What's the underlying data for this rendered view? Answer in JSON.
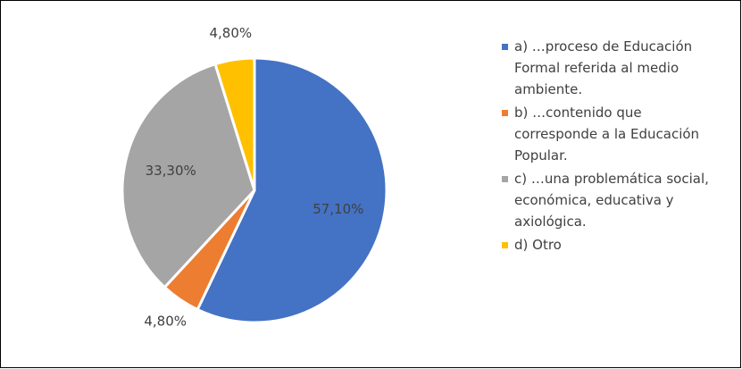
{
  "chart_data": {
    "type": "pie",
    "categories": [
      "a) …proceso de Educación Formal referida al medio ambiente.",
      "b) …contenido que corresponde a la Educación Popular.",
      "c) …una problemática social, económica, educativa y axiológica.",
      "d) Otro"
    ],
    "values": [
      57.1,
      4.8,
      33.3,
      4.8
    ],
    "value_labels": [
      "57,10%",
      "4,80%",
      "33,30%",
      "4,80%"
    ],
    "colors": [
      "#4472c4",
      "#ed7d31",
      "#a5a5a5",
      "#ffc000"
    ],
    "legend": "right"
  }
}
